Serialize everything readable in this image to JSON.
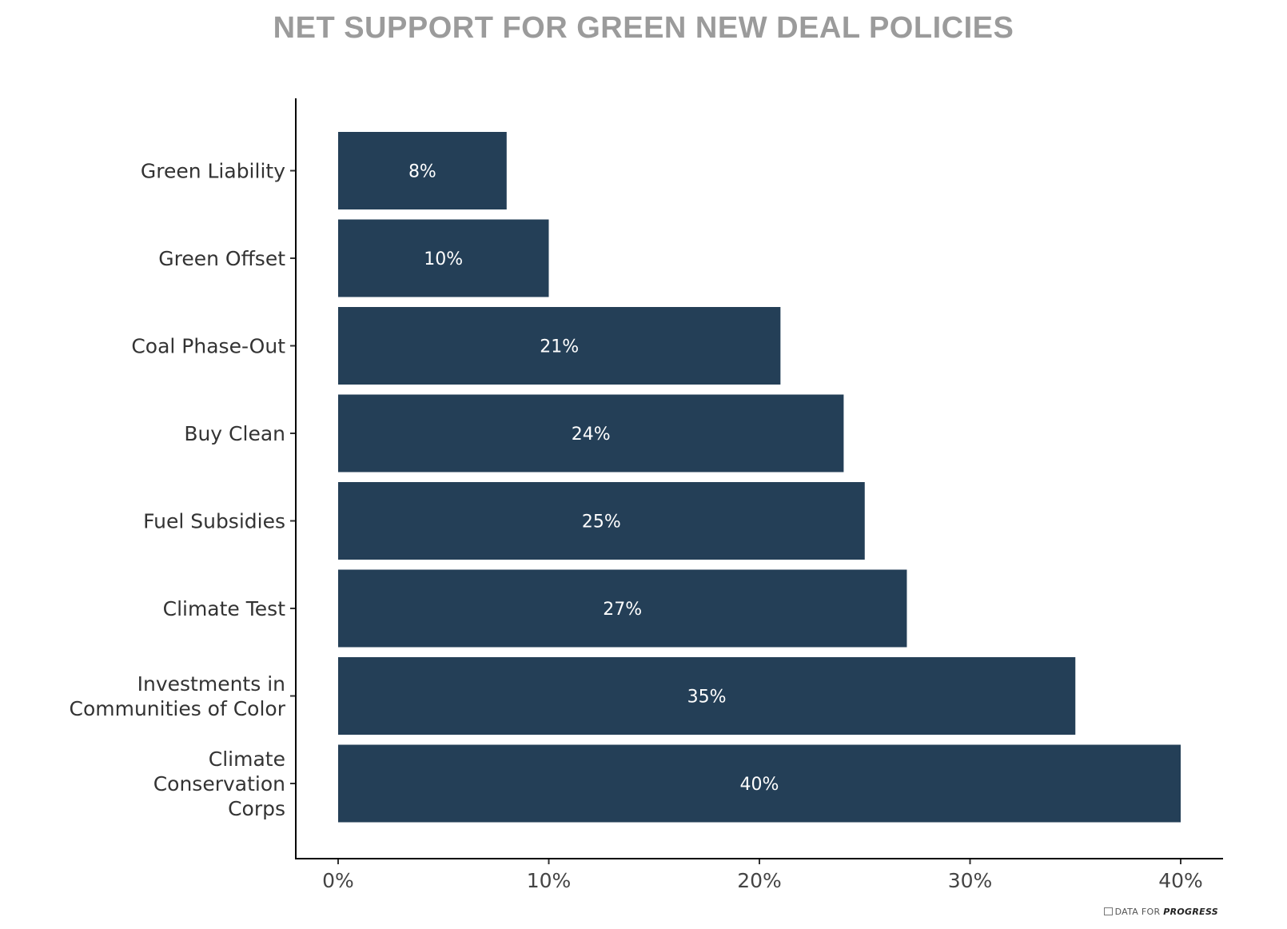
{
  "chart_data": {
    "type": "bar",
    "orientation": "horizontal",
    "title": "NET SUPPORT FOR GREEN NEW DEAL POLICIES",
    "categories": [
      [
        "Green Liability"
      ],
      [
        "Green Offset"
      ],
      [
        "Coal Phase-Out"
      ],
      [
        "Buy Clean"
      ],
      [
        "Fuel Subsidies"
      ],
      [
        "Climate Test"
      ],
      [
        "Investments in",
        "Communities of Color"
      ],
      [
        "Climate",
        "Conservation",
        "Corps"
      ]
    ],
    "values": [
      8,
      10,
      21,
      24,
      25,
      27,
      35,
      40
    ],
    "value_labels": [
      "8%",
      "10%",
      "21%",
      "24%",
      "25%",
      "27%",
      "35%",
      "40%"
    ],
    "xlim": [
      0,
      40
    ],
    "xticks": [
      0,
      10,
      20,
      30,
      40
    ],
    "xtick_labels": [
      "0%",
      "10%",
      "20%",
      "30%",
      "40%"
    ],
    "bar_color": "#243f57",
    "xlabel": "",
    "ylabel": ""
  },
  "footer": {
    "prefix": "DATA FOR ",
    "brand": "PROGRESS"
  }
}
